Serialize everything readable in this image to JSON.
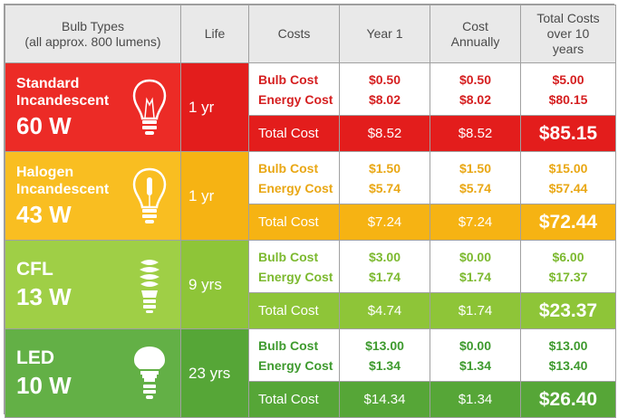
{
  "header": {
    "bulb_types": "Bulb Types",
    "bulb_types_sub": "(all approx. 800 lumens)",
    "life": "Life",
    "costs": "Costs",
    "year1": "Year 1",
    "cost_annually_1": "Cost",
    "cost_annually_2": "Annually",
    "total_1": "Total Costs",
    "total_2": "over 10",
    "total_3": "years"
  },
  "labels": {
    "bulb_cost": "Bulb Cost",
    "energy_cost": "Energy Cost",
    "total_cost": "Total Cost"
  },
  "rows": [
    {
      "name_1": "Standard",
      "name_2": "Incandescent",
      "watt": "60 W",
      "life": "1 yr",
      "icon": "incandescent-bulb-icon",
      "bulb": {
        "year1": "$0.50",
        "annual": "$0.50",
        "total": "$5.00"
      },
      "energy": {
        "year1": "$8.02",
        "annual": "$8.02",
        "total": "$80.15"
      },
      "totals": {
        "year1": "$8.52",
        "annual": "$8.52",
        "total": "$85.15"
      }
    },
    {
      "name_1": "Halogen",
      "name_2": "Incandescent",
      "watt": "43 W",
      "life": "1 yr",
      "icon": "halogen-bulb-icon",
      "bulb": {
        "year1": "$1.50",
        "annual": "$1.50",
        "total": "$15.00"
      },
      "energy": {
        "year1": "$5.74",
        "annual": "$5.74",
        "total": "$57.44"
      },
      "totals": {
        "year1": "$7.24",
        "annual": "$7.24",
        "total": "$72.44"
      }
    },
    {
      "name_1": "CFL",
      "name_2": "",
      "watt": "13 W",
      "life": "9 yrs",
      "icon": "cfl-bulb-icon",
      "bulb": {
        "year1": "$3.00",
        "annual": "$0.00",
        "total": "$6.00"
      },
      "energy": {
        "year1": "$1.74",
        "annual": "$1.74",
        "total": "$17.37"
      },
      "totals": {
        "year1": "$4.74",
        "annual": "$1.74",
        "total": "$23.37"
      }
    },
    {
      "name_1": "LED",
      "name_2": "",
      "watt": "10 W",
      "life": "23 yrs",
      "icon": "led-bulb-icon",
      "bulb": {
        "year1": "$13.00",
        "annual": "$0.00",
        "total": "$13.00"
      },
      "energy": {
        "year1": "$1.34",
        "annual": "$1.34",
        "total": "$13.40"
      },
      "totals": {
        "year1": "$14.34",
        "annual": "$1.34",
        "total": "$26.40"
      }
    }
  ],
  "colors": {
    "incandescent": "#e31d1c",
    "halogen": "#f6b313",
    "cfl": "#8ec538",
    "led": "#56a637"
  }
}
